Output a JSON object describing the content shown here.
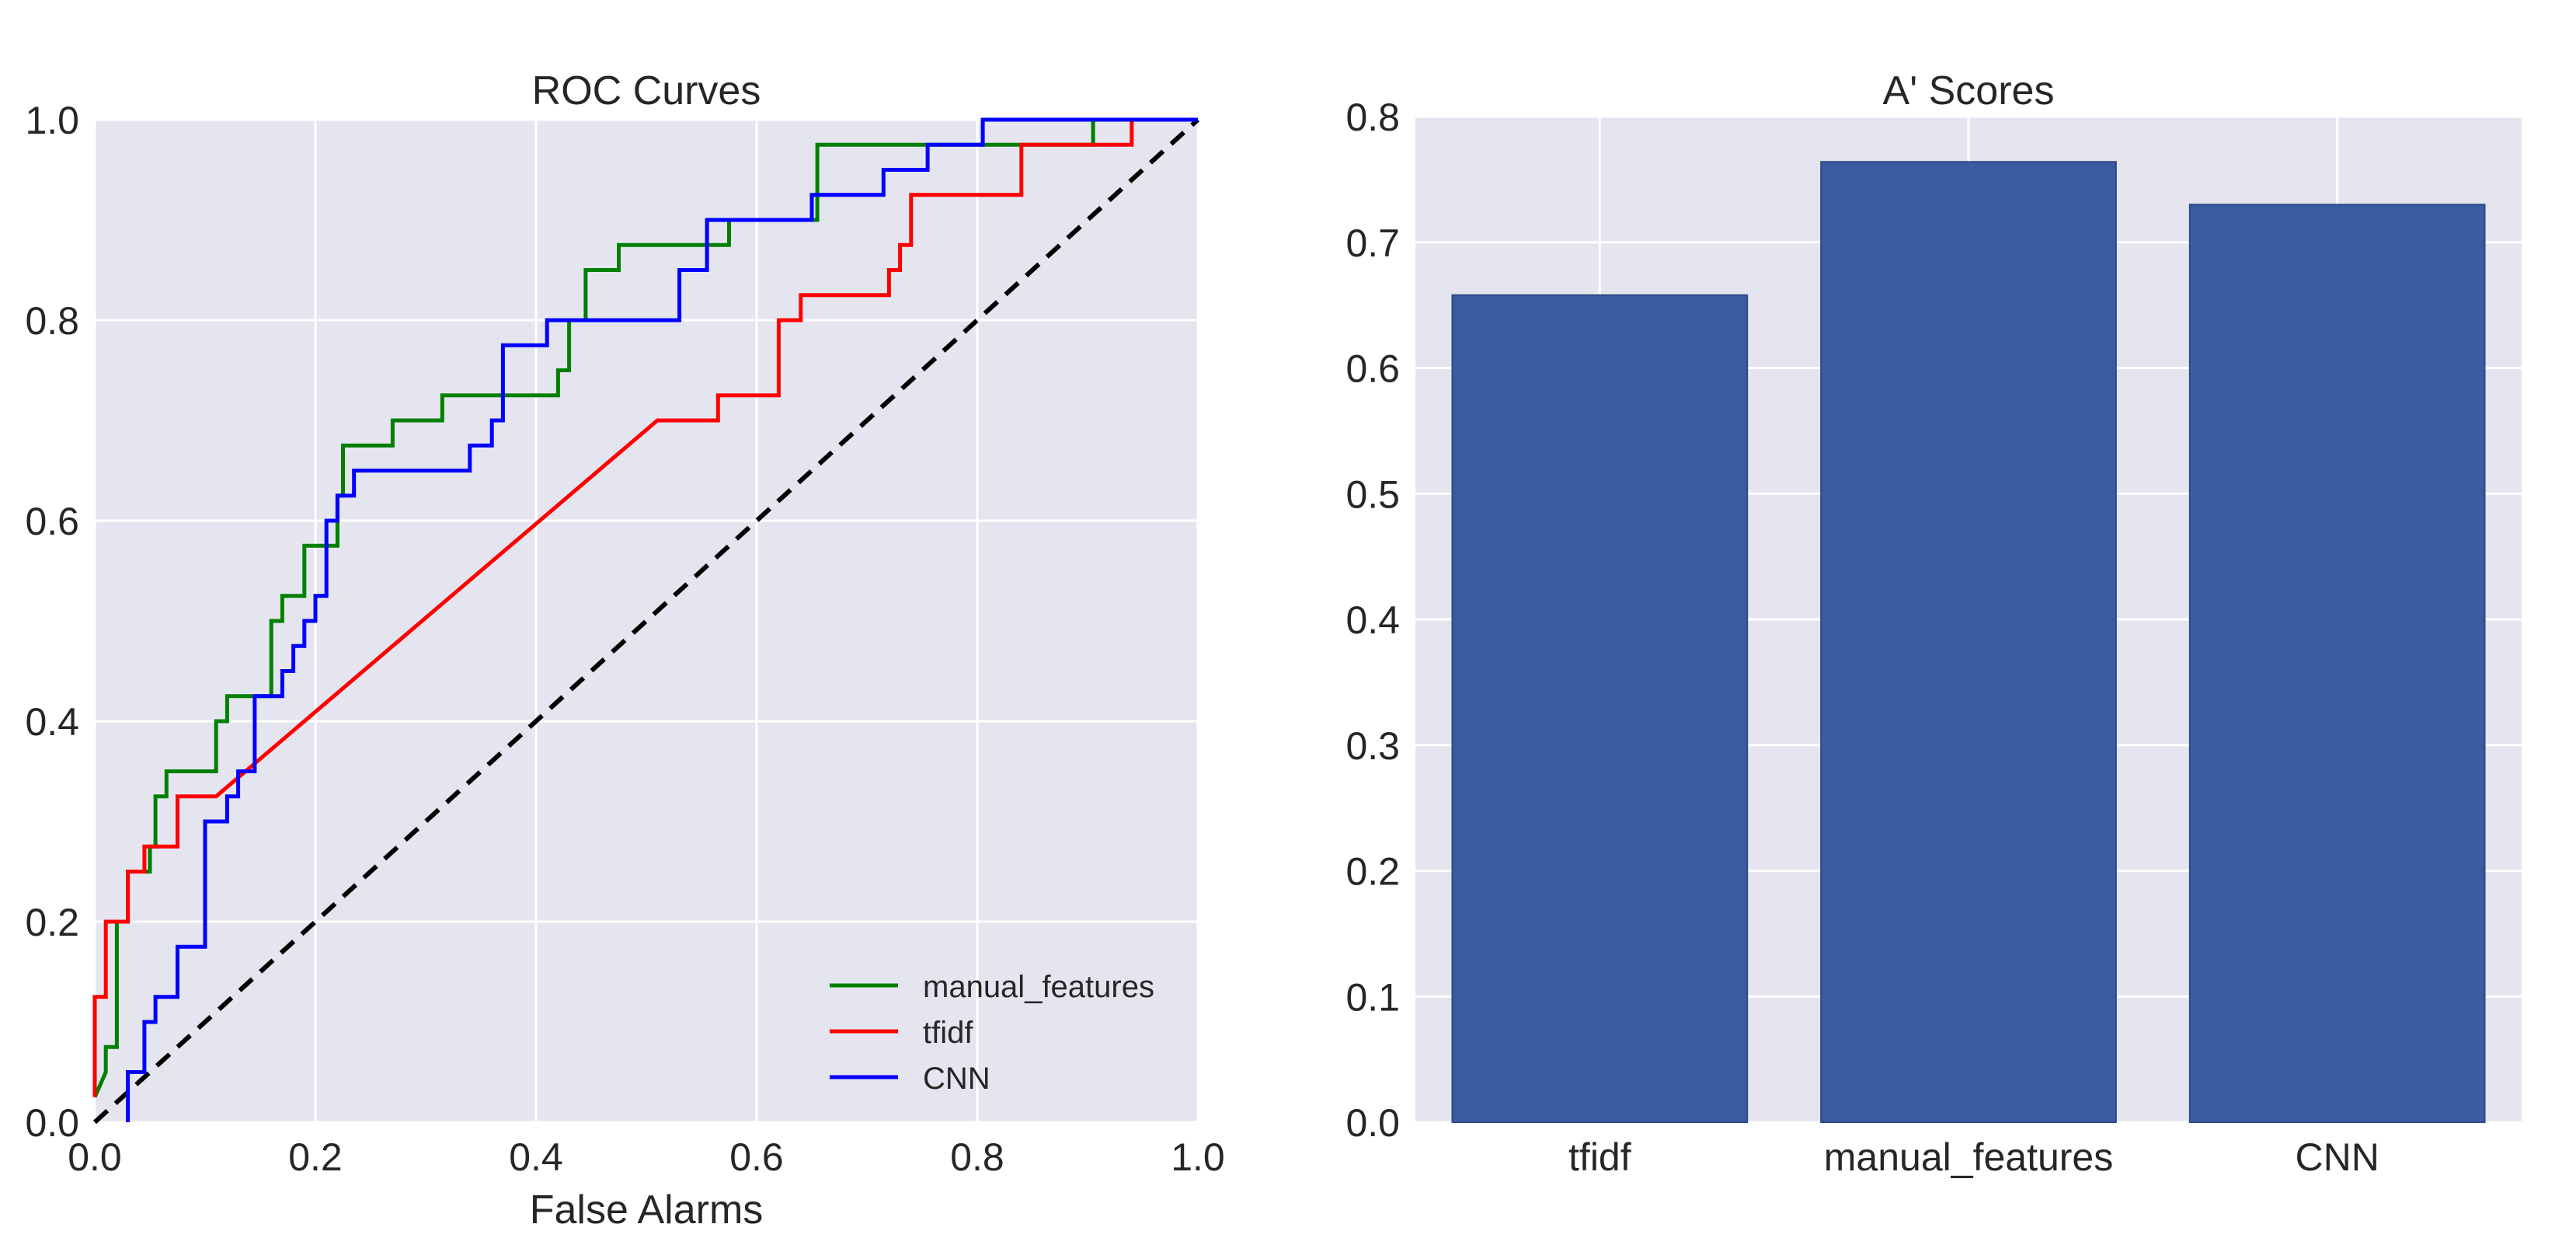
{
  "chart_data": [
    {
      "type": "line",
      "title": "ROC Curves",
      "xlabel": "False Alarms",
      "ylabel": "",
      "xlim": [
        0.0,
        1.0
      ],
      "ylim": [
        0.0,
        1.0
      ],
      "xticks": [
        "0.0",
        "0.2",
        "0.4",
        "0.6",
        "0.8",
        "1.0"
      ],
      "yticks": [
        "0.0",
        "0.2",
        "0.4",
        "0.6",
        "0.8",
        "1.0"
      ],
      "grid": true,
      "legend_position": "lower-right",
      "series": [
        {
          "name": "manual_features",
          "color": "#008000",
          "points": [
            [
              0,
              0.025
            ],
            [
              0.01,
              0.05
            ],
            [
              0.01,
              0.075
            ],
            [
              0.02,
              0.075
            ],
            [
              0.02,
              0.2
            ],
            [
              0.03,
              0.2
            ],
            [
              0.03,
              0.25
            ],
            [
              0.05,
              0.25
            ],
            [
              0.05,
              0.275
            ],
            [
              0.055,
              0.275
            ],
            [
              0.055,
              0.325
            ],
            [
              0.065,
              0.325
            ],
            [
              0.065,
              0.35
            ],
            [
              0.11,
              0.35
            ],
            [
              0.11,
              0.4
            ],
            [
              0.12,
              0.4
            ],
            [
              0.12,
              0.425
            ],
            [
              0.16,
              0.425
            ],
            [
              0.16,
              0.5
            ],
            [
              0.17,
              0.5
            ],
            [
              0.17,
              0.525
            ],
            [
              0.19,
              0.525
            ],
            [
              0.19,
              0.575
            ],
            [
              0.22,
              0.575
            ],
            [
              0.22,
              0.625
            ],
            [
              0.225,
              0.625
            ],
            [
              0.225,
              0.675
            ],
            [
              0.27,
              0.675
            ],
            [
              0.27,
              0.7
            ],
            [
              0.315,
              0.7
            ],
            [
              0.315,
              0.725
            ],
            [
              0.42,
              0.725
            ],
            [
              0.42,
              0.75
            ],
            [
              0.43,
              0.75
            ],
            [
              0.43,
              0.8
            ],
            [
              0.445,
              0.8
            ],
            [
              0.445,
              0.85
            ],
            [
              0.475,
              0.85
            ],
            [
              0.475,
              0.875
            ],
            [
              0.575,
              0.875
            ],
            [
              0.575,
              0.9
            ],
            [
              0.655,
              0.9
            ],
            [
              0.655,
              0.975
            ],
            [
              0.905,
              0.975
            ],
            [
              0.905,
              1.0
            ],
            [
              1.0,
              1.0
            ]
          ]
        },
        {
          "name": "tfidf",
          "color": "#ff0000",
          "points": [
            [
              0,
              0.025
            ],
            [
              0,
              0.125
            ],
            [
              0.01,
              0.125
            ],
            [
              0.01,
              0.2
            ],
            [
              0.03,
              0.2
            ],
            [
              0.03,
              0.25
            ],
            [
              0.045,
              0.25
            ],
            [
              0.045,
              0.275
            ],
            [
              0.075,
              0.275
            ],
            [
              0.075,
              0.325
            ],
            [
              0.11,
              0.325
            ],
            [
              0.51,
              0.7
            ],
            [
              0.565,
              0.7
            ],
            [
              0.565,
              0.725
            ],
            [
              0.62,
              0.725
            ],
            [
              0.62,
              0.8
            ],
            [
              0.64,
              0.8
            ],
            [
              0.64,
              0.825
            ],
            [
              0.72,
              0.825
            ],
            [
              0.72,
              0.85
            ],
            [
              0.73,
              0.85
            ],
            [
              0.73,
              0.875
            ],
            [
              0.74,
              0.875
            ],
            [
              0.74,
              0.925
            ],
            [
              0.84,
              0.925
            ],
            [
              0.84,
              0.975
            ],
            [
              0.94,
              0.975
            ],
            [
              0.94,
              1.0
            ],
            [
              1.0,
              1.0
            ]
          ]
        },
        {
          "name": "CNN",
          "color": "#0000ff",
          "points": [
            [
              0.03,
              0
            ],
            [
              0.03,
              0.05
            ],
            [
              0.045,
              0.05
            ],
            [
              0.045,
              0.1
            ],
            [
              0.055,
              0.1
            ],
            [
              0.055,
              0.125
            ],
            [
              0.075,
              0.125
            ],
            [
              0.075,
              0.175
            ],
            [
              0.1,
              0.175
            ],
            [
              0.1,
              0.3
            ],
            [
              0.12,
              0.3
            ],
            [
              0.12,
              0.325
            ],
            [
              0.13,
              0.325
            ],
            [
              0.13,
              0.35
            ],
            [
              0.145,
              0.35
            ],
            [
              0.145,
              0.425
            ],
            [
              0.17,
              0.425
            ],
            [
              0.17,
              0.45
            ],
            [
              0.18,
              0.45
            ],
            [
              0.18,
              0.475
            ],
            [
              0.19,
              0.475
            ],
            [
              0.19,
              0.5
            ],
            [
              0.2,
              0.5
            ],
            [
              0.2,
              0.525
            ],
            [
              0.21,
              0.525
            ],
            [
              0.21,
              0.6
            ],
            [
              0.22,
              0.6
            ],
            [
              0.22,
              0.625
            ],
            [
              0.235,
              0.625
            ],
            [
              0.235,
              0.65
            ],
            [
              0.34,
              0.65
            ],
            [
              0.34,
              0.675
            ],
            [
              0.36,
              0.675
            ],
            [
              0.36,
              0.7
            ],
            [
              0.37,
              0.7
            ],
            [
              0.37,
              0.775
            ],
            [
              0.41,
              0.775
            ],
            [
              0.41,
              0.8
            ],
            [
              0.53,
              0.8
            ],
            [
              0.53,
              0.85
            ],
            [
              0.555,
              0.85
            ],
            [
              0.555,
              0.9
            ],
            [
              0.65,
              0.9
            ],
            [
              0.65,
              0.925
            ],
            [
              0.715,
              0.925
            ],
            [
              0.715,
              0.95
            ],
            [
              0.755,
              0.95
            ],
            [
              0.755,
              0.975
            ],
            [
              0.805,
              0.975
            ],
            [
              0.805,
              1.0
            ],
            [
              1.0,
              1.0
            ]
          ]
        }
      ],
      "reference_line": {
        "points": [
          [
            0,
            0
          ],
          [
            1,
            1
          ]
        ],
        "color": "#000000",
        "style": "dashed"
      }
    },
    {
      "type": "bar",
      "title": "A' Scores",
      "categories": [
        "tfidf",
        "manual_features",
        "CNN"
      ],
      "values": [
        0.658,
        0.764,
        0.73
      ],
      "ylim": [
        0.0,
        0.8
      ],
      "yticks": [
        "0.0",
        "0.1",
        "0.2",
        "0.3",
        "0.4",
        "0.5",
        "0.6",
        "0.7",
        "0.8"
      ],
      "xlabel": "",
      "ylabel": "",
      "grid": true,
      "bar_color": "#3a5ba2"
    }
  ],
  "theme": {
    "plot_background": "#e5e5f0",
    "grid_color": "#ffffff",
    "text_color": "#262626"
  }
}
